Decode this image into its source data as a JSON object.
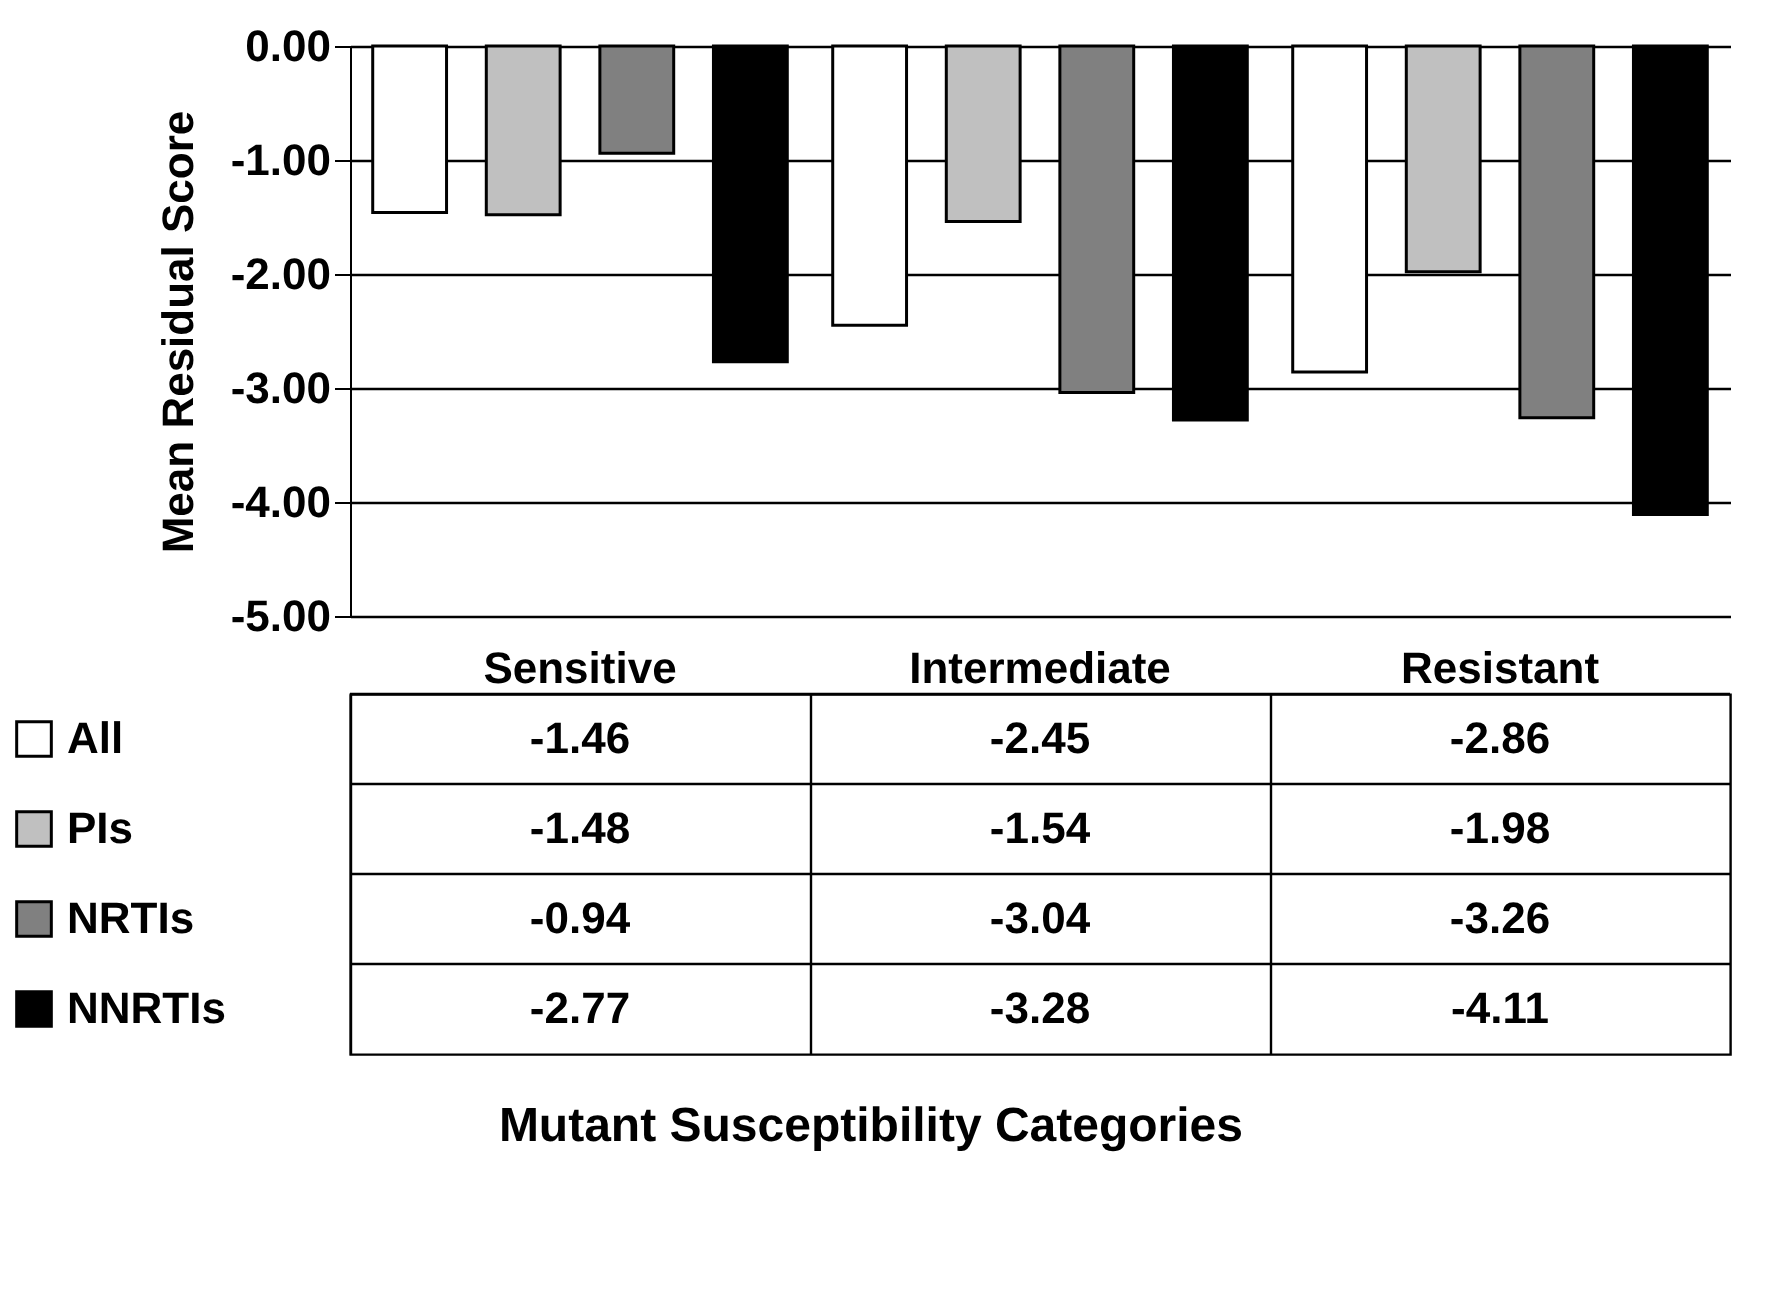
{
  "chart_data": {
    "type": "bar",
    "ylabel": "Mean Residual Score",
    "annotations": [
      "Mutant Susceptibility Categories"
    ],
    "categories": [
      "Sensitive",
      "Intermediate",
      "Resistant"
    ],
    "series": [
      {
        "name": "All",
        "color": "#ffffff",
        "values": [
          -1.46,
          -2.45,
          -2.86
        ]
      },
      {
        "name": "PIs",
        "color": "#c0c0c0",
        "values": [
          -1.48,
          -1.54,
          -1.98
        ]
      },
      {
        "name": "NRTIs",
        "color": "#808080",
        "values": [
          -0.94,
          -3.04,
          -3.26
        ]
      },
      {
        "name": "NNRTIs",
        "color": "#000000",
        "values": [
          -2.77,
          -3.28,
          -4.11
        ]
      }
    ],
    "ylim": [
      -5,
      0
    ],
    "yticks": [
      {
        "value": 0,
        "label": "0.00"
      },
      {
        "value": -1,
        "label": "-1.00"
      },
      {
        "value": -2,
        "label": "-2.00"
      },
      {
        "value": -3,
        "label": "-3.00"
      },
      {
        "value": -4,
        "label": "-4.00"
      },
      {
        "value": -5,
        "label": "-5.00"
      }
    ],
    "grid": "y",
    "legend": "bottom left",
    "data_labels": true
  }
}
